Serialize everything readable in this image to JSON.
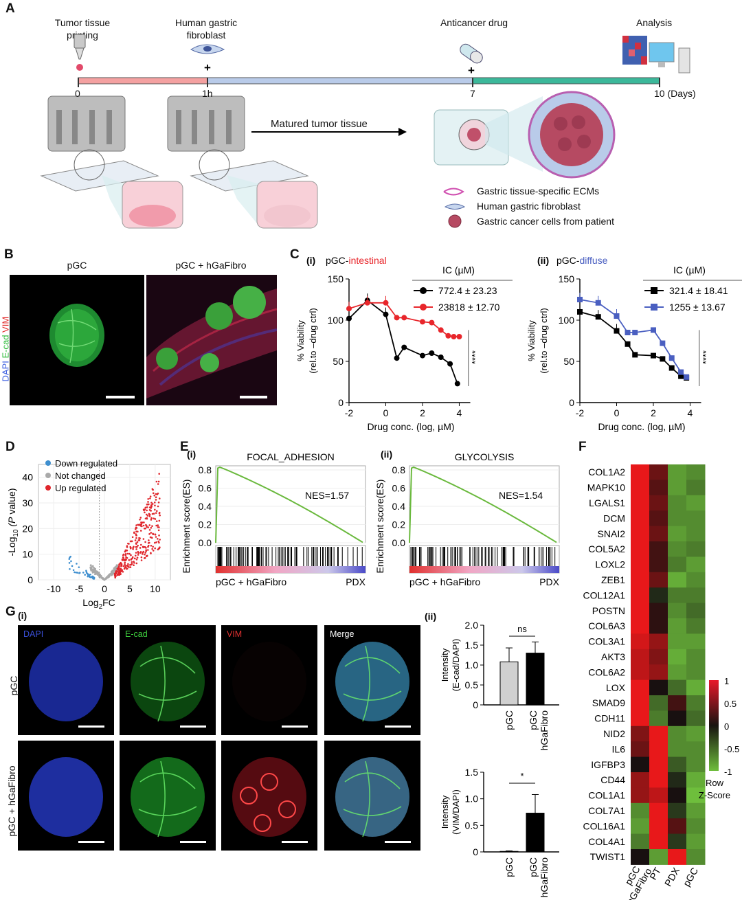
{
  "panel_labels": {
    "A": "A",
    "B": "B",
    "C": "C",
    "D": "D",
    "E": "E",
    "F": "F",
    "G": "G"
  },
  "timeline": {
    "steps": [
      "Tumor tissue printing",
      "Human gastric fibroblast",
      "Anticancer drug",
      "Analysis"
    ],
    "ticks": [
      "0",
      "1h",
      "7",
      "10 (Days)"
    ],
    "plus": "+",
    "arrow_label": "Matured tumor tissue",
    "legend": [
      "Gastric tissue-specific ECMs",
      "Human gastric fibroblast",
      "Gastric cancer cells from patient"
    ],
    "colors": {
      "seg1": "#f4a1a1",
      "seg2": "#b9cbe9",
      "seg3": "#3cb89a"
    }
  },
  "panel_b": {
    "titles": [
      "pGC",
      "pGC + hGaFibro"
    ],
    "stain_prefix": "DAPI",
    "stain_ecad": "E-cad",
    "stain_vim": "VIM"
  },
  "chart_data": [
    {
      "id": "C-i",
      "type": "line",
      "sub": "(i)",
      "title_prefix": "pGC-",
      "title_suffix": "intestinal",
      "xlabel": "Drug conc. (log, µM)",
      "ylabel": "% Viability",
      "ylabel2": "(rel.to –drug ctrl)",
      "xlim": [
        -2,
        5
      ],
      "ylim": [
        0,
        150
      ],
      "xticks": [
        -2,
        0,
        2,
        4
      ],
      "yticks": [
        0,
        50,
        100,
        150
      ],
      "legend_head": "IC50 (µM)",
      "significance": "****",
      "series": [
        {
          "name": "772.4 ± 23.23",
          "color": "#000000",
          "x": [
            -2,
            -1,
            0,
            0.6,
            1,
            2,
            2.5,
            3,
            3.5,
            3.9
          ],
          "y": [
            102,
            124,
            107,
            54,
            67,
            57,
            60,
            55,
            47,
            23
          ]
        },
        {
          "name": "23818 ± 12.70",
          "color": "#e8262b",
          "x": [
            -2,
            -1,
            0,
            0.6,
            1,
            2,
            2.5,
            3,
            3.4,
            3.7,
            4
          ],
          "y": [
            114,
            121,
            121,
            103,
            103,
            98,
            97,
            88,
            81,
            80,
            80
          ]
        }
      ]
    },
    {
      "id": "C-ii",
      "type": "line",
      "sub": "(ii)",
      "title_prefix": "pGC-",
      "title_suffix": "diffuse",
      "xlabel": "Drug conc. (log, µM)",
      "ylabel": "% Viability",
      "ylabel2": "(rel.to –drug ctrl)",
      "xlim": [
        -2,
        5
      ],
      "ylim": [
        0,
        150
      ],
      "xticks": [
        -2,
        0,
        2,
        4
      ],
      "yticks": [
        0,
        50,
        100,
        150
      ],
      "legend_head": "IC50 (µM)",
      "significance": "****",
      "series": [
        {
          "name": "321.4 ± 18.41",
          "color": "#000000",
          "x": [
            -2,
            -1,
            0,
            0.6,
            1,
            2,
            2.5,
            3,
            3.5,
            3.8
          ],
          "y": [
            110,
            104,
            87,
            71,
            58,
            57,
            53,
            42,
            32,
            30
          ]
        },
        {
          "name": "1255 ± 13.67",
          "color": "#4a5fc1",
          "x": [
            -2,
            -1,
            0,
            0.6,
            1,
            2,
            2.5,
            3,
            3.5,
            3.8
          ],
          "y": [
            125,
            121,
            105,
            85,
            85,
            88,
            72,
            54,
            37,
            31
          ]
        }
      ]
    },
    {
      "id": "D",
      "type": "scatter",
      "xlabel": "Log2FC",
      "ylabel": "-Log10 (P value)",
      "xlim": [
        -13,
        13
      ],
      "ylim": [
        0,
        45
      ],
      "xticks": [
        -10,
        -5,
        0,
        5,
        10
      ],
      "yticks": [
        0,
        10,
        20,
        30,
        40
      ],
      "legend": [
        {
          "label": "Down regulated",
          "color": "#3f8fcf"
        },
        {
          "label": "Not changed",
          "color": "#a9a9a9"
        },
        {
          "label": "Up regulated",
          "color": "#e0262c"
        }
      ]
    },
    {
      "id": "E-i",
      "type": "line",
      "sub": "(i)",
      "title": "FOCAL_ADHESION",
      "nes": "NES=1.57",
      "ylabel": "Enrichment score(ES)",
      "ylim": [
        0,
        0.8
      ],
      "yticks": [
        0.0,
        0.2,
        0.4,
        0.6,
        0.8
      ],
      "left_label": "pGC + hGaFibro",
      "right_label": "PDX",
      "color": "#6ab93d"
    },
    {
      "id": "E-ii",
      "type": "line",
      "sub": "(ii)",
      "title": "GLYCOLYSIS",
      "nes": "NES=1.54",
      "ylabel": "Enrichment score(ES)",
      "ylim": [
        0,
        0.8
      ],
      "yticks": [
        0.0,
        0.2,
        0.4,
        0.6,
        0.8
      ],
      "left_label": "pGC + hGaFibro",
      "right_label": "PDX",
      "color": "#6ab93d"
    },
    {
      "id": "F",
      "type": "heatmap",
      "rows": [
        "COL1A2",
        "MAPK10",
        "LGALS1",
        "DCM",
        "SNAI2",
        "COL5A2",
        "LOXL2",
        "ZEB1",
        "COL12A1",
        "POSTN",
        "COL6A3",
        "COL3A1",
        "AKT3",
        "COL6A2",
        "LOX",
        "SMAD9",
        "CDH11",
        "NID2",
        "IL6",
        "IGFBP3",
        "CD44",
        "COL1A1",
        "COL7A1",
        "COL16A1",
        "COL4A1",
        "TWIST1"
      ],
      "columns": [
        "pGC + hGaFibro",
        "PT",
        "PDX",
        "pGC"
      ],
      "values": [
        [
          1.0,
          0.4,
          -0.8,
          -0.7
        ],
        [
          1.0,
          0.3,
          -0.8,
          -0.6
        ],
        [
          1.0,
          0.4,
          -0.7,
          -0.8
        ],
        [
          1.0,
          0.3,
          -0.7,
          -0.7
        ],
        [
          1.0,
          0.4,
          -0.8,
          -0.7
        ],
        [
          1.0,
          0.2,
          -0.7,
          -0.6
        ],
        [
          1.0,
          0.2,
          -0.6,
          -0.8
        ],
        [
          1.0,
          0.4,
          -0.9,
          -0.7
        ],
        [
          1.0,
          -0.1,
          -0.6,
          -0.6
        ],
        [
          1.0,
          0.1,
          -0.7,
          -0.5
        ],
        [
          1.0,
          0.1,
          -0.8,
          -0.6
        ],
        [
          0.9,
          0.6,
          -0.8,
          -0.8
        ],
        [
          0.8,
          0.5,
          -0.9,
          -0.7
        ],
        [
          0.8,
          0.6,
          -0.8,
          -0.7
        ],
        [
          1.0,
          0.0,
          -0.5,
          -0.9
        ],
        [
          1.0,
          -0.5,
          0.2,
          -0.6
        ],
        [
          1.0,
          -0.6,
          0.0,
          -0.5
        ],
        [
          0.5,
          1.0,
          -0.7,
          -0.8
        ],
        [
          0.4,
          1.0,
          -0.7,
          -0.7
        ],
        [
          0.0,
          1.0,
          -0.4,
          -0.7
        ],
        [
          0.6,
          1.0,
          -0.1,
          -0.9
        ],
        [
          0.6,
          0.8,
          0.0,
          -1.0
        ],
        [
          -0.7,
          1.0,
          -0.2,
          -0.8
        ],
        [
          -0.8,
          1.0,
          0.3,
          -0.7
        ],
        [
          -0.6,
          1.0,
          -0.2,
          -0.8
        ],
        [
          0.0,
          -0.8,
          1.0,
          -0.7
        ]
      ],
      "scale_ticks": [
        "1",
        "0.5",
        "0",
        "-0.5",
        "-1"
      ],
      "scale_title": "Row",
      "scale_title2": "Z-Score"
    },
    {
      "id": "G-ii-top",
      "type": "bar",
      "sub": "(ii)",
      "categories": [
        "pGC",
        "pGC + hGaFibro"
      ],
      "values": [
        1.08,
        1.3
      ],
      "errors": [
        0.35,
        0.28
      ],
      "ylabel": "Intensity",
      "ylabel2": "(E-cad/DAPI)",
      "ylim": [
        0,
        2.0
      ],
      "yticks": [
        "0",
        "0.5",
        "1.0",
        "1.5",
        "2.0"
      ],
      "significance": "ns",
      "colors": [
        "#d0d0d0",
        "#000000"
      ]
    },
    {
      "id": "G-ii-bottom",
      "type": "bar",
      "categories": [
        "pGC",
        "pGC + hGaFibro"
      ],
      "values": [
        0.01,
        0.73
      ],
      "errors": [
        0.01,
        0.35
      ],
      "ylabel": "Intensity",
      "ylabel2": "(VIM/DAPI)",
      "ylim": [
        0,
        1.5
      ],
      "yticks": [
        "0",
        "0.5",
        "1.0",
        "1.5"
      ],
      "significance": "*",
      "colors": [
        "#d0d0d0",
        "#000000"
      ]
    }
  ],
  "panel_g": {
    "sub": "(i)",
    "channels": [
      "DAPI",
      "E-cad",
      "VIM",
      "Merge"
    ],
    "channel_colors": [
      "#3a4fd8",
      "#3fd13f",
      "#e03030",
      "#ffffff"
    ],
    "rows": [
      "pGC",
      "pGC + hGaFibro"
    ]
  }
}
